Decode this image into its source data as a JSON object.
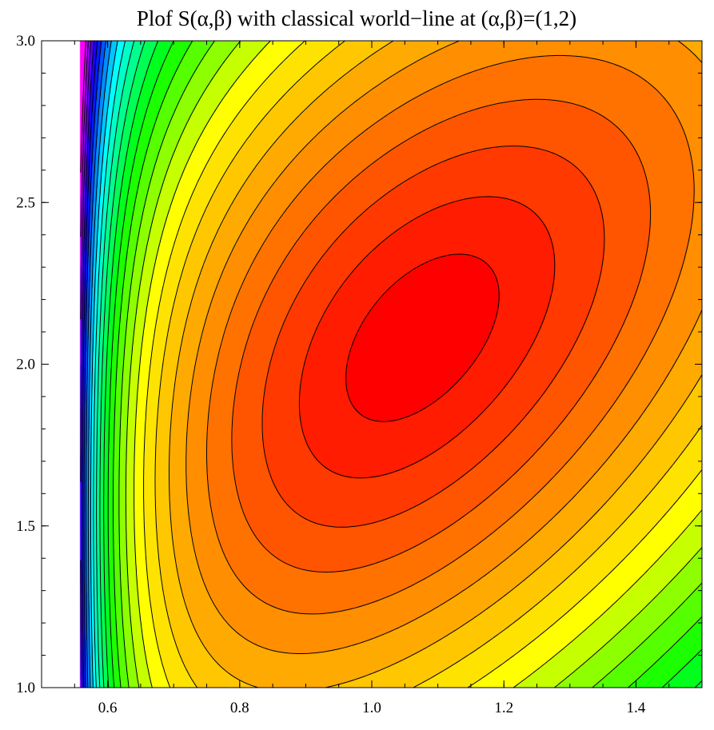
{
  "chart_data": {
    "type": "contour",
    "title": "Plof S(α,β) with classical world−line at (α,β)=(1,2)",
    "xlabel": "",
    "ylabel": "",
    "xlim": [
      0.5,
      1.5
    ],
    "ylim": [
      1.0,
      3.0
    ],
    "x_ticks": [
      0.6,
      0.8,
      1.0,
      1.2,
      1.4
    ],
    "x_tick_labels": [
      "0.6",
      "0.8",
      "1.0",
      "1.2",
      "1.4"
    ],
    "y_ticks": [
      1.0,
      1.5,
      2.0,
      2.5,
      3.0
    ],
    "y_tick_labels": [
      "1.0",
      "1.5",
      "2.0",
      "2.5",
      "3.0"
    ],
    "grid": false,
    "colormap": "rainbow (purple = low, red = high)",
    "colormap_stops": [
      "#ff00ff",
      "#0000ff",
      "#00ffff",
      "#00ff00",
      "#ffff00",
      "#ff8000",
      "#ff0000"
    ],
    "contour_line_color": "#000000",
    "maximum_point": {
      "x": 1.0,
      "y": 2.0
    }
  }
}
